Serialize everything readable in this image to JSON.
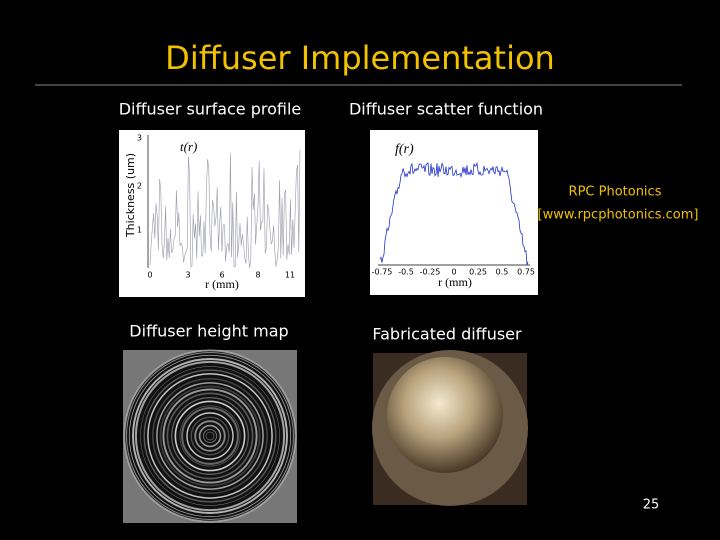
{
  "title": "Diffuser Implementation",
  "profile": {
    "label": "Diffuser surface profile",
    "y_axis_label": "Thickness (um)",
    "function_label": "t(r)",
    "x_axis_label": "r (mm)",
    "yticks": [
      3,
      2,
      1
    ],
    "xticks": [
      0,
      3,
      6,
      8,
      11
    ]
  },
  "scatter": {
    "label": "Diffuser scatter function",
    "function_label": "f(r)",
    "x_axis_label": "r (mm)",
    "xticks": [
      -0.75,
      -0.5,
      -0.25,
      0,
      0.25,
      0.5,
      0.75
    ]
  },
  "credit": {
    "name": "RPC Photonics",
    "url": "[www.rpcphotonics.com]"
  },
  "height_map": {
    "label": "Diffuser height map"
  },
  "fabricated": {
    "label": "Fabricated diffuser"
  },
  "page_number": "25"
}
